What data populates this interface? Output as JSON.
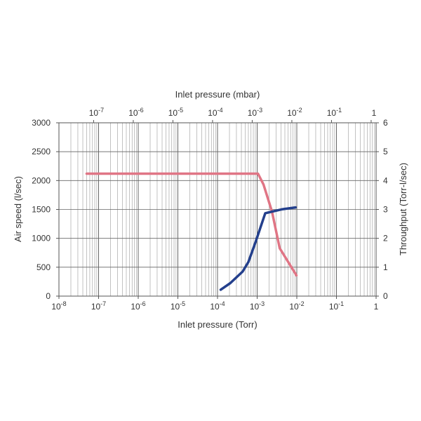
{
  "chart_data": {
    "type": "line",
    "title": "",
    "xlabel": "Inlet pressure (Torr)",
    "x2label": "Inlet pressure (mbar)",
    "ylabel": "Air speed (l/sec)",
    "y2label": "Throughput (Torr-l/sec)",
    "xscale": "log",
    "xlim": [
      1e-08,
      1
    ],
    "x_ticks": [
      {
        "base": "10",
        "exp": "-8"
      },
      {
        "base": "10",
        "exp": "-7"
      },
      {
        "base": "10",
        "exp": "-6"
      },
      {
        "base": "10",
        "exp": "-5"
      },
      {
        "base": "10",
        "exp": "-4"
      },
      {
        "base": "10",
        "exp": "-3"
      },
      {
        "base": "10",
        "exp": "-2"
      },
      {
        "base": "10",
        "exp": "-1"
      },
      {
        "base": "1",
        "exp": ""
      }
    ],
    "x2_conversion_mbar_to_torr": 0.75,
    "x2_ticks": [
      {
        "base": "10",
        "exp": "-7",
        "value": 1e-07
      },
      {
        "base": "10",
        "exp": "-6",
        "value": 1e-06
      },
      {
        "base": "10",
        "exp": "-5",
        "value": 1e-05
      },
      {
        "base": "10",
        "exp": "-4",
        "value": 0.0001
      },
      {
        "base": "10",
        "exp": "-3",
        "value": 0.001
      },
      {
        "base": "10",
        "exp": "-2",
        "value": 0.01
      },
      {
        "base": "10",
        "exp": "-1",
        "value": 0.1
      },
      {
        "base": "1",
        "exp": "",
        "value": 1
      }
    ],
    "ylim": [
      0,
      3000
    ],
    "y_ticks": [
      "0",
      "500",
      "1000",
      "1500",
      "2000",
      "2500",
      "3000"
    ],
    "y2lim": [
      0,
      6
    ],
    "y2_ticks": [
      "0",
      "1",
      "2",
      "3",
      "4",
      "5",
      "6"
    ],
    "grid": true,
    "series": [
      {
        "axis": "left",
        "color": "#e07585",
        "x": [
          5e-08,
          0.0001,
          0.00105,
          0.00145,
          0.00237,
          0.0037,
          0.0098
        ],
        "y": [
          2120,
          2120,
          2120,
          1930,
          1460,
          830,
          360
        ]
      },
      {
        "axis": "right",
        "color": "#233f8c",
        "x": [
          0.00012,
          0.00021,
          0.00043,
          0.0006,
          0.00091,
          0.0016,
          0.0044,
          0.0093
        ],
        "y": [
          0.22,
          0.45,
          0.85,
          1.18,
          1.87,
          2.87,
          3.01,
          3.07
        ]
      }
    ]
  }
}
